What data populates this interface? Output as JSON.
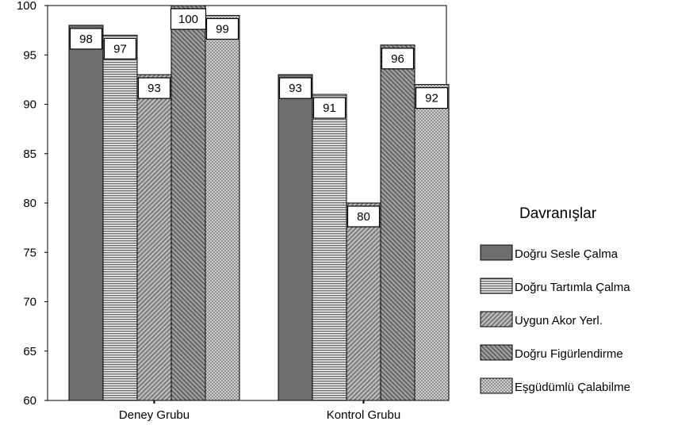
{
  "chart_data": {
    "type": "bar",
    "categories": [
      "Deney Grubu",
      "Kontrol Grubu"
    ],
    "series": [
      {
        "name": "Doğru Sesle Çalma",
        "values": [
          98,
          93
        ],
        "labels": [
          "98",
          "93"
        ],
        "pattern": "solid"
      },
      {
        "name": "Doğru Tartımla Çalma",
        "values": [
          97,
          91
        ],
        "labels": [
          "97",
          "91"
        ],
        "pattern": "horizontal-lines"
      },
      {
        "name": "Uygun Akor Yerl.",
        "values": [
          93,
          80
        ],
        "labels": [
          "93",
          "80"
        ],
        "pattern": "diagonal-hatch"
      },
      {
        "name": "Doğru Figürlendirme",
        "values": [
          100,
          96
        ],
        "labels": [
          "100",
          "96"
        ],
        "pattern": "dense-diagonal"
      },
      {
        "name": "Eşgüdümlü Çalabilme",
        "values": [
          99,
          92
        ],
        "labels": [
          "99",
          "92"
        ],
        "pattern": "crosshatch"
      }
    ],
    "title": "",
    "xlabel": "",
    "ylabel": "",
    "ylim": [
      60,
      100
    ],
    "yticks": [
      "60",
      "65",
      "70",
      "75",
      "80",
      "85",
      "90",
      "95",
      "100"
    ],
    "legend": {
      "title": "Davranışlar",
      "position": "right"
    },
    "grid": false
  }
}
